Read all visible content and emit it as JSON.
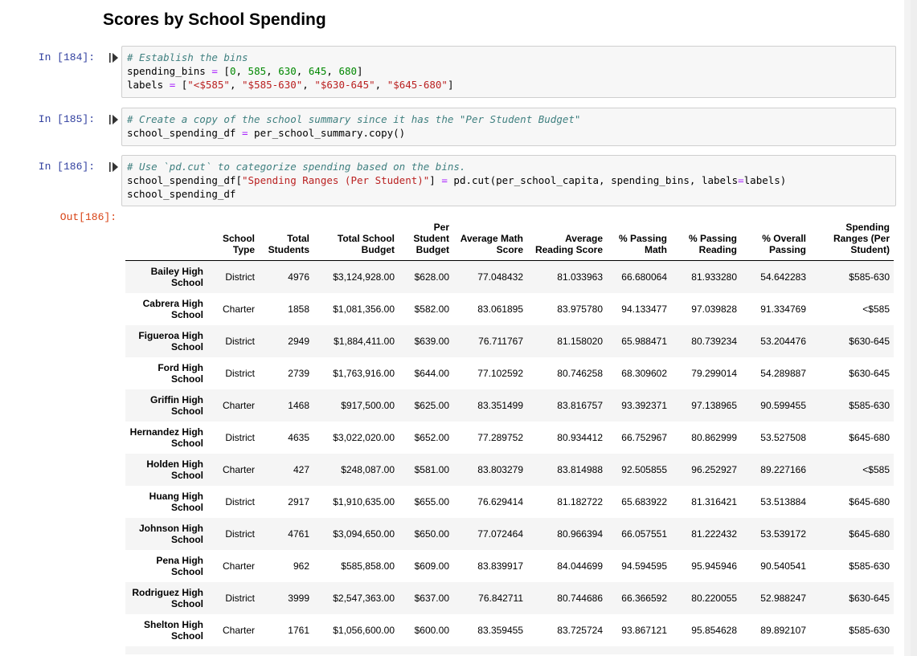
{
  "page_title": "Scores by School Spending",
  "cells": [
    {
      "prompt": "In [184]:",
      "code": [
        "# Establish the bins",
        "spending_bins = [0, 585, 630, 645, 680]",
        "labels = [\"<$585\", \"$585-630\", \"$630-645\", \"$645-680\"]"
      ]
    },
    {
      "prompt": "In [185]:",
      "code": [
        "# Create a copy of the school summary since it has the \"Per Student Budget\"",
        "school_spending_df = per_school_summary.copy()"
      ]
    },
    {
      "prompt": "In [186]:",
      "code": [
        "# Use `pd.cut` to categorize spending based on the bins.",
        "school_spending_df[\"Spending Ranges (Per Student)\"] = pd.cut(per_school_capita, spending_bins, labels=labels)",
        "school_spending_df"
      ]
    }
  ],
  "output_prompt": "Out[186]:",
  "table": {
    "columns": [
      "School Type",
      "Total Students",
      "Total School Budget",
      "Per Student Budget",
      "Average Math Score",
      "Average Reading Score",
      "% Passing Math",
      "% Passing Reading",
      "% Overall Passing",
      "Spending Ranges (Per Student)"
    ],
    "rows": [
      {
        "name": "Bailey High School",
        "cells": [
          "District",
          "4976",
          "$3,124,928.00",
          "$628.00",
          "77.048432",
          "81.033963",
          "66.680064",
          "81.933280",
          "54.642283",
          "$585-630"
        ]
      },
      {
        "name": "Cabrera High School",
        "cells": [
          "Charter",
          "1858",
          "$1,081,356.00",
          "$582.00",
          "83.061895",
          "83.975780",
          "94.133477",
          "97.039828",
          "91.334769",
          "<$585"
        ]
      },
      {
        "name": "Figueroa High School",
        "cells": [
          "District",
          "2949",
          "$1,884,411.00",
          "$639.00",
          "76.711767",
          "81.158020",
          "65.988471",
          "80.739234",
          "53.204476",
          "$630-645"
        ]
      },
      {
        "name": "Ford High School",
        "cells": [
          "District",
          "2739",
          "$1,763,916.00",
          "$644.00",
          "77.102592",
          "80.746258",
          "68.309602",
          "79.299014",
          "54.289887",
          "$630-645"
        ]
      },
      {
        "name": "Griffin High School",
        "cells": [
          "Charter",
          "1468",
          "$917,500.00",
          "$625.00",
          "83.351499",
          "83.816757",
          "93.392371",
          "97.138965",
          "90.599455",
          "$585-630"
        ]
      },
      {
        "name": "Hernandez High School",
        "cells": [
          "District",
          "4635",
          "$3,022,020.00",
          "$652.00",
          "77.289752",
          "80.934412",
          "66.752967",
          "80.862999",
          "53.527508",
          "$645-680"
        ]
      },
      {
        "name": "Holden High School",
        "cells": [
          "Charter",
          "427",
          "$248,087.00",
          "$581.00",
          "83.803279",
          "83.814988",
          "92.505855",
          "96.252927",
          "89.227166",
          "<$585"
        ]
      },
      {
        "name": "Huang High School",
        "cells": [
          "District",
          "2917",
          "$1,910,635.00",
          "$655.00",
          "76.629414",
          "81.182722",
          "65.683922",
          "81.316421",
          "53.513884",
          "$645-680"
        ]
      },
      {
        "name": "Johnson High School",
        "cells": [
          "District",
          "4761",
          "$3,094,650.00",
          "$650.00",
          "77.072464",
          "80.966394",
          "66.057551",
          "81.222432",
          "53.539172",
          "$645-680"
        ]
      },
      {
        "name": "Pena High School",
        "cells": [
          "Charter",
          "962",
          "$585,858.00",
          "$609.00",
          "83.839917",
          "84.044699",
          "94.594595",
          "95.945946",
          "90.540541",
          "$585-630"
        ]
      },
      {
        "name": "Rodriguez High School",
        "cells": [
          "District",
          "3999",
          "$2,547,363.00",
          "$637.00",
          "76.842711",
          "80.744686",
          "66.366592",
          "80.220055",
          "52.988247",
          "$630-645"
        ]
      },
      {
        "name": "Shelton High School",
        "cells": [
          "Charter",
          "1761",
          "$1,056,600.00",
          "$600.00",
          "83.359455",
          "83.725724",
          "93.867121",
          "95.854628",
          "89.892107",
          "$585-630"
        ]
      }
    ]
  }
}
